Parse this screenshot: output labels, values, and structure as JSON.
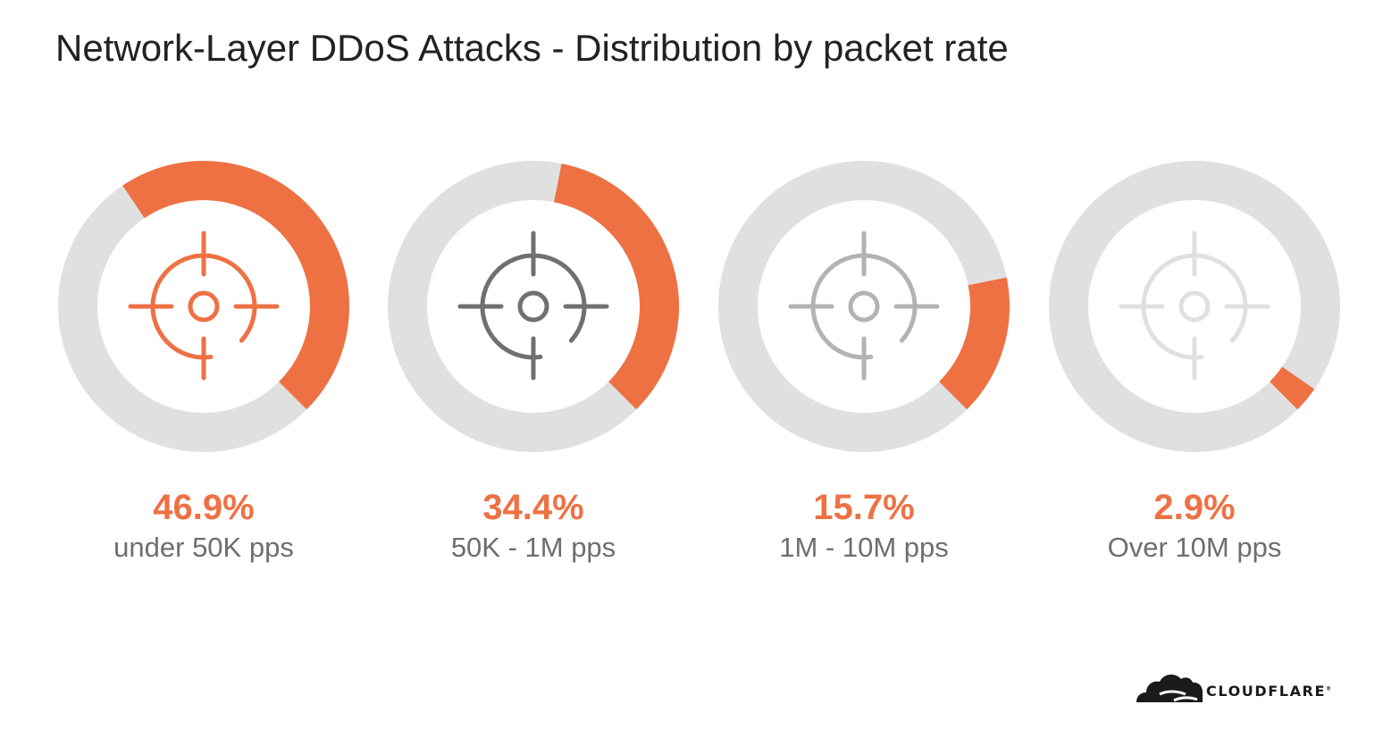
{
  "colors": {
    "accent": "#EE7144",
    "track": "#E0E0E0",
    "title": "#222222",
    "label": "#6E6E6E",
    "icon_levels": [
      "#EE7144",
      "#707070",
      "#B3B3B3",
      "#E0E0E0"
    ]
  },
  "chart_data": {
    "type": "donut",
    "title": "Network-Layer DDoS Attacks - Distribution by packet rate",
    "unit": "%",
    "series": [
      {
        "value": 46.9,
        "value_label": "46.9%",
        "label": "under 50K pps"
      },
      {
        "value": 34.4,
        "value_label": "34.4%",
        "label": "50K - 1M pps"
      },
      {
        "value": 15.7,
        "value_label": "15.7%",
        "label": "1M - 10M pps"
      },
      {
        "value": 2.9,
        "value_label": "2.9%",
        "label": "Over 10M pps"
      }
    ],
    "arc_direction": "counter-clockwise from top-right",
    "icon": "crosshair-target-icon"
  },
  "logo": {
    "name": "CLOUDFLARE",
    "tm": "®",
    "icon": "cloud-icon"
  }
}
